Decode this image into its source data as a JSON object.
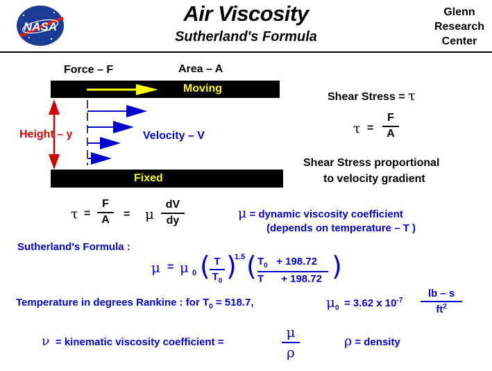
{
  "header": {
    "logo_text": "NASA",
    "title": "Air  Viscosity",
    "subtitle": "Sutherland's  Formula",
    "center": [
      "Glenn",
      "Research",
      "Center"
    ]
  },
  "diagram": {
    "force_label": "Force – F",
    "area_label": "Area – A",
    "moving_label": "Moving",
    "fixed_label": "Fixed",
    "height_label": "Height – y",
    "velocity_label": "Velocity – V"
  },
  "shear": {
    "label": "Shear  Stress  =",
    "tau": "τ",
    "eq": "=",
    "num": "F",
    "den": "A",
    "prop_line1": "Shear  Stress  proportional",
    "prop_line2": "to  velocity  gradient"
  },
  "main_eq": {
    "tau": "τ",
    "eq1": "=",
    "num1": "F",
    "den1": "A",
    "eq2": "=",
    "mu": "μ",
    "num2": "dV",
    "den2": "dy"
  },
  "mu_def": {
    "mu": "μ",
    "line1": "=  dynamic  viscosity  coefficient",
    "line2": "(depends  on  temperature  – T )"
  },
  "sutherland": {
    "label": "Sutherland's  Formula :",
    "mu": "μ",
    "eq": "=",
    "mu0": "μ",
    "sub0": "0",
    "lparen1": "(",
    "num_t": "T",
    "den_t": "T",
    "den_t_sub": "0",
    "rparen1": ")",
    "exponent": "1.5",
    "lparen2": "(",
    "num_t0": "T",
    "num_t0_sub": "0",
    "num_add": "+ 198.72",
    "den_t2": "T",
    "den_add": "+ 198.72",
    "rparen2": ")"
  },
  "temperature": {
    "text": "Temperature  in  degrees  Rankine :  for  T",
    "sub0": "0",
    "value": " =  518.7,",
    "mu0": "μ",
    "mu0_sub": "0",
    "coef": " = 3.62  x 10",
    "exp": "-7",
    "unit_num": "lb – s",
    "unit_den": "ft",
    "unit_exp": "2"
  },
  "kinematic": {
    "nu": "ν",
    "text": "=  kinematic  viscosity  coefficient  =",
    "num": "μ",
    "den": "ρ",
    "rho": "ρ",
    "density": "=  density"
  },
  "colors": {
    "blue": "#0000cc",
    "red": "#cc0000",
    "yellow": "#ffff00",
    "black": "#000000",
    "nasa_blue": "#1a3c96",
    "nasa_red": "#d62020"
  }
}
